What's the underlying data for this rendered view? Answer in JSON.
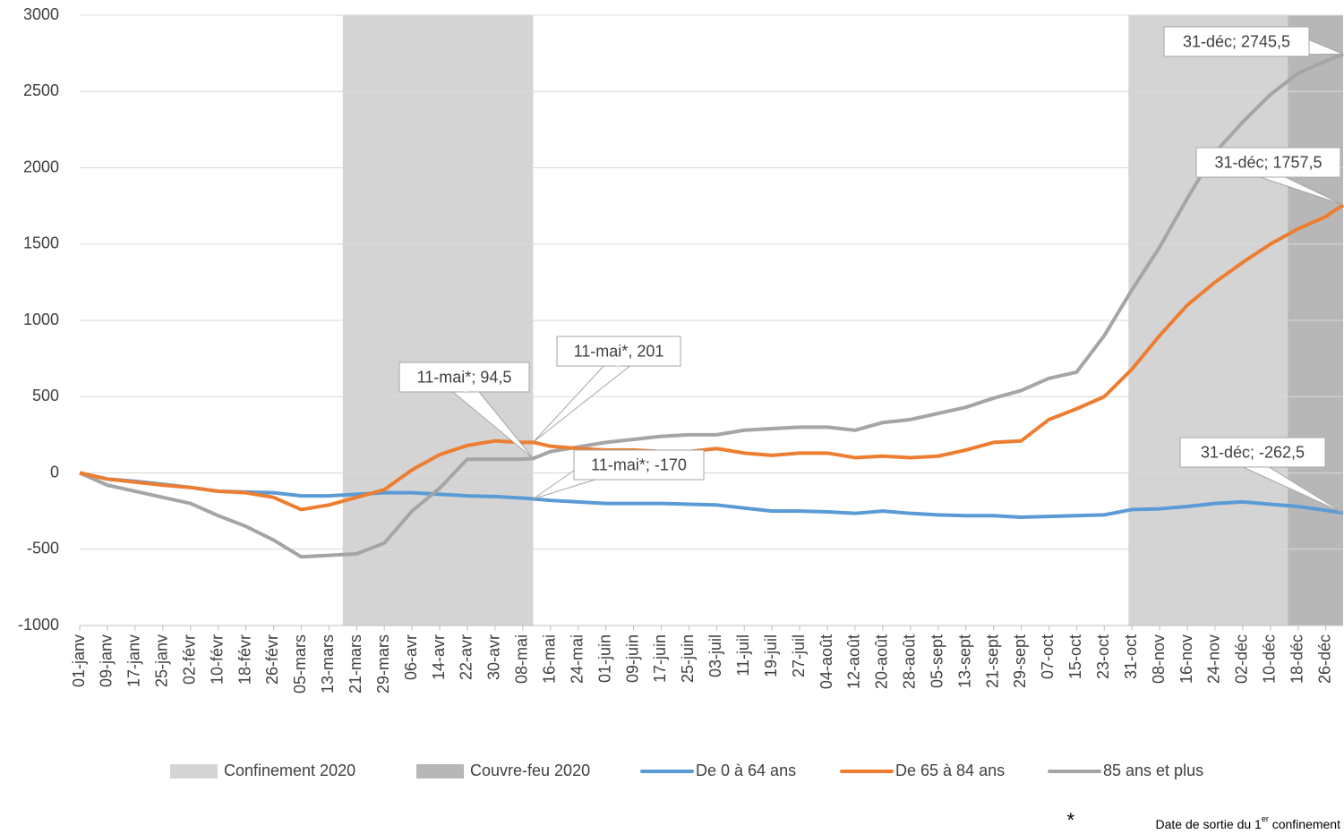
{
  "chart_data": {
    "type": "line",
    "x": [
      1,
      9,
      17,
      25,
      33,
      41,
      49,
      57,
      65,
      73,
      81,
      89,
      97,
      105,
      113,
      121,
      129,
      132,
      137,
      145,
      153,
      161,
      169,
      177,
      185,
      193,
      201,
      209,
      217,
      225,
      233,
      241,
      249,
      257,
      265,
      273,
      281,
      289,
      297,
      305,
      313,
      321,
      329,
      337,
      345,
      353,
      361,
      366
    ],
    "xlim": [
      1,
      366
    ],
    "xticks": [
      {
        "value": 1,
        "label": "01-janv"
      },
      {
        "value": 9,
        "label": "09-janv"
      },
      {
        "value": 17,
        "label": "17-janv"
      },
      {
        "value": 25,
        "label": "25-janv"
      },
      {
        "value": 33,
        "label": "02-févr"
      },
      {
        "value": 41,
        "label": "10-févr"
      },
      {
        "value": 49,
        "label": "18-févr"
      },
      {
        "value": 57,
        "label": "26-févr"
      },
      {
        "value": 65,
        "label": "05-mars"
      },
      {
        "value": 73,
        "label": "13-mars"
      },
      {
        "value": 81,
        "label": "21-mars"
      },
      {
        "value": 89,
        "label": "29-mars"
      },
      {
        "value": 97,
        "label": "06-avr"
      },
      {
        "value": 105,
        "label": "14-avr"
      },
      {
        "value": 113,
        "label": "22-avr"
      },
      {
        "value": 121,
        "label": "30-avr"
      },
      {
        "value": 129,
        "label": "08-mai"
      },
      {
        "value": 137,
        "label": "16-mai"
      },
      {
        "value": 145,
        "label": "24-mai"
      },
      {
        "value": 153,
        "label": "01-juin"
      },
      {
        "value": 161,
        "label": "09-juin"
      },
      {
        "value": 169,
        "label": "17-juin"
      },
      {
        "value": 177,
        "label": "25-juin"
      },
      {
        "value": 185,
        "label": "03-juil"
      },
      {
        "value": 193,
        "label": "11-juil"
      },
      {
        "value": 201,
        "label": "19-juil"
      },
      {
        "value": 209,
        "label": "27-juil"
      },
      {
        "value": 217,
        "label": "04-août"
      },
      {
        "value": 225,
        "label": "12-août"
      },
      {
        "value": 233,
        "label": "20-août"
      },
      {
        "value": 241,
        "label": "28-août"
      },
      {
        "value": 249,
        "label": "05-sept"
      },
      {
        "value": 257,
        "label": "13-sept"
      },
      {
        "value": 265,
        "label": "21-sept"
      },
      {
        "value": 273,
        "label": "29-sept"
      },
      {
        "value": 281,
        "label": "07-oct"
      },
      {
        "value": 289,
        "label": "15-oct"
      },
      {
        "value": 297,
        "label": "23-oct"
      },
      {
        "value": 305,
        "label": "31-oct"
      },
      {
        "value": 313,
        "label": "08-nov"
      },
      {
        "value": 321,
        "label": "16-nov"
      },
      {
        "value": 329,
        "label": "24-nov"
      },
      {
        "value": 337,
        "label": "02-déc"
      },
      {
        "value": 345,
        "label": "10-déc"
      },
      {
        "value": 353,
        "label": "18-déc"
      },
      {
        "value": 361,
        "label": "26-déc"
      }
    ],
    "ylim": [
      -1000,
      3000
    ],
    "yticks": [
      -1000,
      -500,
      0,
      500,
      1000,
      1500,
      2000,
      2500,
      3000
    ],
    "grid": true,
    "periods": [
      {
        "name": "Confinement 2020",
        "color": "#d4d4d4",
        "ranges": [
          [
            77,
            132
          ],
          [
            304,
            350
          ]
        ]
      },
      {
        "name": "Couvre-feu 2020",
        "color": "#b7b7b7",
        "ranges": [
          [
            350,
            366
          ]
        ]
      }
    ],
    "series": [
      {
        "name": "De 0 à 64 ans",
        "color": "#5b9bd5",
        "values": [
          0,
          -40,
          -55,
          -75,
          -95,
          -120,
          -125,
          -130,
          -150,
          -150,
          -140,
          -130,
          -130,
          -140,
          -150,
          -155,
          -165,
          -170,
          -180,
          -190,
          -200,
          -200,
          -200,
          -205,
          -210,
          -230,
          -250,
          -250,
          -255,
          -265,
          -250,
          -265,
          -275,
          -280,
          -280,
          -290,
          -285,
          -280,
          -275,
          -240,
          -235,
          -220,
          -200,
          -190,
          -205,
          -220,
          -245,
          -262.5
        ],
        "value_labels": [
          null,
          null,
          null,
          null,
          null,
          null,
          null,
          null,
          null,
          null,
          null,
          null,
          null,
          null,
          null,
          null,
          null,
          "11-mai*; -170",
          null,
          null,
          null,
          null,
          null,
          null,
          null,
          null,
          null,
          null,
          null,
          null,
          null,
          null,
          null,
          null,
          null,
          null,
          null,
          null,
          null,
          null,
          null,
          null,
          null,
          null,
          null,
          null,
          null,
          "31-déc; -262,5"
        ]
      },
      {
        "name": "De 65 à 84 ans",
        "color": "#ed7d31",
        "values": [
          0,
          -40,
          -60,
          -80,
          -95,
          -120,
          -130,
          -160,
          -240,
          -210,
          -160,
          -110,
          20,
          120,
          180,
          210,
          200,
          201,
          175,
          160,
          150,
          150,
          140,
          140,
          160,
          130,
          115,
          130,
          130,
          100,
          110,
          100,
          110,
          150,
          200,
          210,
          350,
          420,
          500,
          680,
          900,
          1100,
          1250,
          1380,
          1500,
          1600,
          1680,
          1757.5
        ],
        "value_labels": [
          null,
          null,
          null,
          null,
          null,
          null,
          null,
          null,
          null,
          null,
          null,
          null,
          null,
          null,
          null,
          null,
          null,
          "11-mai*, 201",
          null,
          null,
          null,
          null,
          null,
          null,
          null,
          null,
          null,
          null,
          null,
          null,
          null,
          null,
          null,
          null,
          null,
          null,
          null,
          null,
          null,
          null,
          null,
          null,
          null,
          null,
          null,
          null,
          null,
          "31-déc; 1757,5"
        ]
      },
      {
        "name": "85 ans et plus",
        "color": "#a5a5a5",
        "values": [
          0,
          -80,
          -120,
          -160,
          -200,
          -280,
          -350,
          -440,
          -550,
          -540,
          -530,
          -460,
          -250,
          -100,
          90,
          90,
          90,
          94.5,
          140,
          170,
          200,
          220,
          240,
          250,
          250,
          280,
          290,
          300,
          300,
          280,
          330,
          350,
          390,
          430,
          490,
          540,
          620,
          660,
          900,
          1200,
          1480,
          1800,
          2100,
          2300,
          2480,
          2620,
          2700,
          2745.5
        ],
        "value_labels": [
          null,
          null,
          null,
          null,
          null,
          null,
          null,
          null,
          null,
          null,
          null,
          null,
          null,
          null,
          null,
          null,
          null,
          "11-mai*; 94,5",
          null,
          null,
          null,
          null,
          null,
          null,
          null,
          null,
          null,
          null,
          null,
          null,
          null,
          null,
          null,
          null,
          null,
          null,
          null,
          null,
          null,
          null,
          null,
          null,
          null,
          null,
          null,
          null,
          null,
          "31-déc; 2745,5"
        ]
      }
    ],
    "footnote": {
      "mark": "*",
      "text": "Date de sortie du 1",
      "sup": "er",
      "rest": " confinement"
    }
  }
}
